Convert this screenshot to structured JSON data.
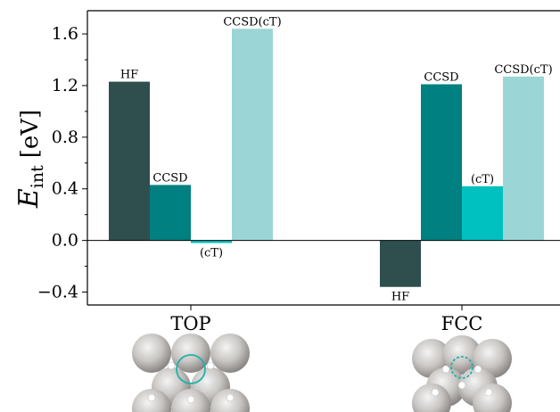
{
  "chart_data": {
    "type": "bar",
    "categories": [
      "TOP",
      "FCC"
    ],
    "ylabel_main": "E",
    "ylabel_sub": "int",
    "ylabel_unit": "[eV]",
    "ylim": [
      -0.5,
      1.78
    ],
    "yticks": [
      -0.4,
      0.0,
      0.4,
      0.8,
      1.2,
      1.6
    ],
    "ytick_labels": [
      "−0.4",
      "0.0",
      "0.4",
      "0.8",
      "1.2",
      "1.6"
    ],
    "grid": false,
    "bars": [
      {
        "group": "TOP",
        "label": "HF",
        "value": 1.23,
        "color": "#2f4f4f"
      },
      {
        "group": "TOP",
        "label": "CCSD",
        "value": 0.43,
        "color": "#008080"
      },
      {
        "group": "TOP",
        "label": "(cT)",
        "value": -0.02,
        "color": "#00c0c0"
      },
      {
        "group": "TOP",
        "label": "CCSD(cT)",
        "value": 1.64,
        "color": "#9cd5d5"
      },
      {
        "group": "FCC",
        "label": "HF",
        "value": -0.36,
        "color": "#2f4f4f"
      },
      {
        "group": "FCC",
        "label": "CCSD",
        "value": 1.21,
        "color": "#008080"
      },
      {
        "group": "FCC",
        "label": "(cT)",
        "value": 0.42,
        "color": "#00c0c0"
      },
      {
        "group": "FCC",
        "label": "CCSD(cT)",
        "value": 1.27,
        "color": "#9cd5d5"
      }
    ],
    "insets": [
      {
        "group": "TOP",
        "site": "top",
        "ring_color": "#20b2aa"
      },
      {
        "group": "FCC",
        "site": "fcc",
        "ring_color": "#20b2aa"
      }
    ]
  }
}
